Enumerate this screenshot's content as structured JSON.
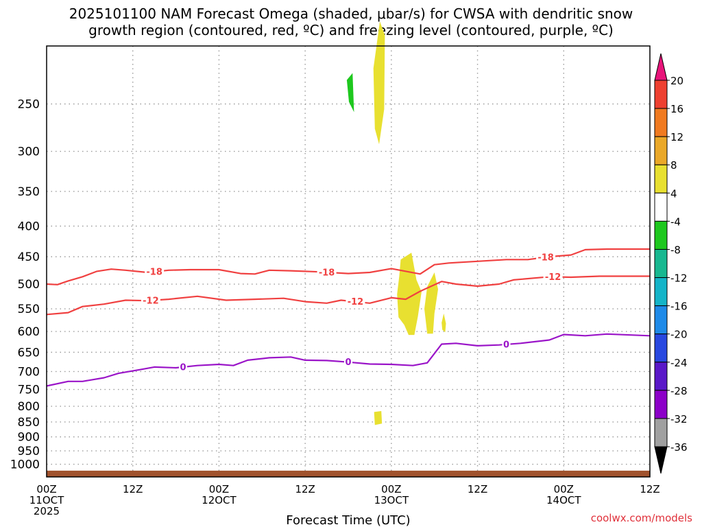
{
  "title": {
    "line1": "2025101100 NAM Forecast Omega (shaded, μbar/s) for CWSA with dendritic snow",
    "line2": "growth region (contoured, red, ºC) and freezing level (contoured, purple, ºC)"
  },
  "credit": "coolwx.com/models",
  "chart_data": {
    "type": "time-height",
    "xlabel": "Forecast Time (UTC)",
    "xlim_hours": [
      0,
      84
    ],
    "ylim_hPa": [
      1050,
      200
    ],
    "y_ticks": [
      250,
      300,
      350,
      400,
      450,
      500,
      550,
      600,
      650,
      700,
      750,
      800,
      850,
      900,
      950,
      1000
    ],
    "x_ticks": [
      {
        "hour": 0,
        "lines": [
          "00Z",
          "11OCT",
          "2025"
        ]
      },
      {
        "hour": 12,
        "lines": [
          "12Z"
        ]
      },
      {
        "hour": 24,
        "lines": [
          "00Z",
          "12OCT"
        ]
      },
      {
        "hour": 36,
        "lines": [
          "12Z"
        ]
      },
      {
        "hour": 48,
        "lines": [
          "00Z",
          "13OCT"
        ]
      },
      {
        "hour": 60,
        "lines": [
          "12Z"
        ]
      },
      {
        "hour": 72,
        "lines": [
          "00Z",
          "14OCT"
        ]
      },
      {
        "hour": 84,
        "lines": [
          "12Z"
        ]
      }
    ],
    "ground_pressure_hPa": 1025,
    "colorbar": {
      "labels": [
        "20",
        "16",
        "12",
        "8",
        "4",
        "-4",
        "-8",
        "-12",
        "-16",
        "-20",
        "-24",
        "-28",
        "-32",
        "-36"
      ],
      "colors": [
        "#e8147a",
        "#ee4030",
        "#f07a20",
        "#eaa828",
        "#e8e030",
        "#ffffff",
        "#1ec81e",
        "#18b890",
        "#14b4c8",
        "#1e8ae8",
        "#2848e0",
        "#5a18c8",
        "#8c00c8",
        "#a0a0a0",
        "#000000"
      ]
    },
    "contours": [
      {
        "name": "minus-18",
        "label": "-18",
        "color": "#f04040",
        "points": [
          [
            0,
            500
          ],
          [
            1.5,
            501
          ],
          [
            3,
            494
          ],
          [
            5,
            486
          ],
          [
            7,
            476
          ],
          [
            9,
            472
          ],
          [
            11,
            474
          ],
          [
            14,
            478
          ],
          [
            17,
            474
          ],
          [
            20,
            473
          ],
          [
            24,
            473
          ],
          [
            27,
            480
          ],
          [
            29,
            481
          ],
          [
            31,
            474
          ],
          [
            34,
            475
          ],
          [
            38,
            477
          ],
          [
            42,
            480
          ],
          [
            45,
            478
          ],
          [
            48,
            471
          ],
          [
            52,
            481
          ],
          [
            54,
            464
          ],
          [
            56,
            461
          ],
          [
            60,
            458
          ],
          [
            64,
            455
          ],
          [
            67,
            455
          ],
          [
            70,
            450
          ],
          [
            73,
            447
          ],
          [
            75,
            438
          ],
          [
            78,
            437
          ],
          [
            84,
            437
          ]
        ],
        "labels_at": [
          15,
          39,
          69.5
        ]
      },
      {
        "name": "minus-12",
        "label": "-12",
        "color": "#f04040",
        "points": [
          [
            0,
            562
          ],
          [
            3,
            558
          ],
          [
            5,
            545
          ],
          [
            8,
            540
          ],
          [
            11,
            532
          ],
          [
            14,
            533
          ],
          [
            17,
            530
          ],
          [
            21,
            524
          ],
          [
            25,
            532
          ],
          [
            29,
            530
          ],
          [
            33,
            528
          ],
          [
            36,
            535
          ],
          [
            39,
            538
          ],
          [
            41,
            532
          ],
          [
            45,
            538
          ],
          [
            48,
            527
          ],
          [
            50,
            530
          ],
          [
            52,
            514
          ],
          [
            55,
            495
          ],
          [
            57,
            500
          ],
          [
            60,
            504
          ],
          [
            63,
            500
          ],
          [
            65,
            492
          ],
          [
            70,
            486
          ],
          [
            73,
            487
          ],
          [
            77,
            485
          ],
          [
            84,
            485
          ]
        ],
        "labels_at": [
          14.5,
          43,
          70.5
        ]
      },
      {
        "name": "zero",
        "label": "0",
        "color": "#9a14c8",
        "points": [
          [
            0,
            740
          ],
          [
            3,
            727
          ],
          [
            5,
            727
          ],
          [
            8,
            717
          ],
          [
            10,
            705
          ],
          [
            13,
            695
          ],
          [
            15,
            688
          ],
          [
            18,
            690
          ],
          [
            21,
            684
          ],
          [
            24,
            681
          ],
          [
            26,
            684
          ],
          [
            28,
            670
          ],
          [
            31,
            664
          ],
          [
            34,
            662
          ],
          [
            36,
            670
          ],
          [
            39,
            671
          ],
          [
            42,
            675
          ],
          [
            45,
            680
          ],
          [
            48,
            681
          ],
          [
            51,
            684
          ],
          [
            53,
            677
          ],
          [
            55,
            630
          ],
          [
            57,
            628
          ],
          [
            60,
            634
          ],
          [
            63,
            632
          ],
          [
            66,
            628
          ],
          [
            70,
            620
          ],
          [
            72,
            607
          ],
          [
            75,
            610
          ],
          [
            78,
            606
          ],
          [
            84,
            610
          ]
        ],
        "labels_at": [
          19,
          42,
          64
        ]
      }
    ],
    "omega_regions": [
      {
        "name": "omega-green",
        "value_range": "-8 to -4",
        "color": "#1ec81e",
        "polygon": [
          [
            41.8,
            228
          ],
          [
            42.6,
            222
          ],
          [
            42.8,
            258
          ],
          [
            42.1,
            248
          ]
        ]
      },
      {
        "name": "omega-yellow-upper",
        "value_range": "4 to 8",
        "color": "#e8e030",
        "polygon": [
          [
            45.5,
            218
          ],
          [
            46.4,
            182
          ],
          [
            47.1,
            192
          ],
          [
            47.0,
            255
          ],
          [
            46.3,
            292
          ],
          [
            45.7,
            275
          ]
        ]
      },
      {
        "name": "omega-yellow-mid",
        "value_range": "4 to 8",
        "color": "#e8e030",
        "polygon": [
          [
            49.3,
            455
          ],
          [
            50.8,
            443
          ],
          [
            51.5,
            492
          ],
          [
            52.2,
            515
          ],
          [
            51.7,
            566
          ],
          [
            51.2,
            608
          ],
          [
            50.4,
            608
          ],
          [
            49.8,
            585
          ],
          [
            49.0,
            568
          ],
          [
            48.8,
            520
          ],
          [
            49.1,
            485
          ]
        ]
      },
      {
        "name": "omega-yellow-right",
        "value_range": "4 to 8",
        "color": "#e8e030",
        "polygon": [
          [
            53.0,
            505
          ],
          [
            54.0,
            478
          ],
          [
            54.5,
            510
          ],
          [
            54.0,
            560
          ],
          [
            53.8,
            605
          ],
          [
            53.0,
            605
          ],
          [
            52.6,
            550
          ]
        ]
      },
      {
        "name": "omega-yellow-small",
        "value_range": "4 to 8",
        "color": "#e8e030",
        "polygon": [
          [
            55.3,
            560
          ],
          [
            55.6,
            582
          ],
          [
            55.5,
            602
          ],
          [
            55.1,
            596
          ],
          [
            55.0,
            580
          ]
        ]
      },
      {
        "name": "omega-yellow-low",
        "value_range": "4 to 8",
        "color": "#e8e030",
        "polygon": [
          [
            45.6,
            818
          ],
          [
            46.6,
            815
          ],
          [
            46.7,
            855
          ],
          [
            45.7,
            860
          ]
        ]
      }
    ]
  }
}
